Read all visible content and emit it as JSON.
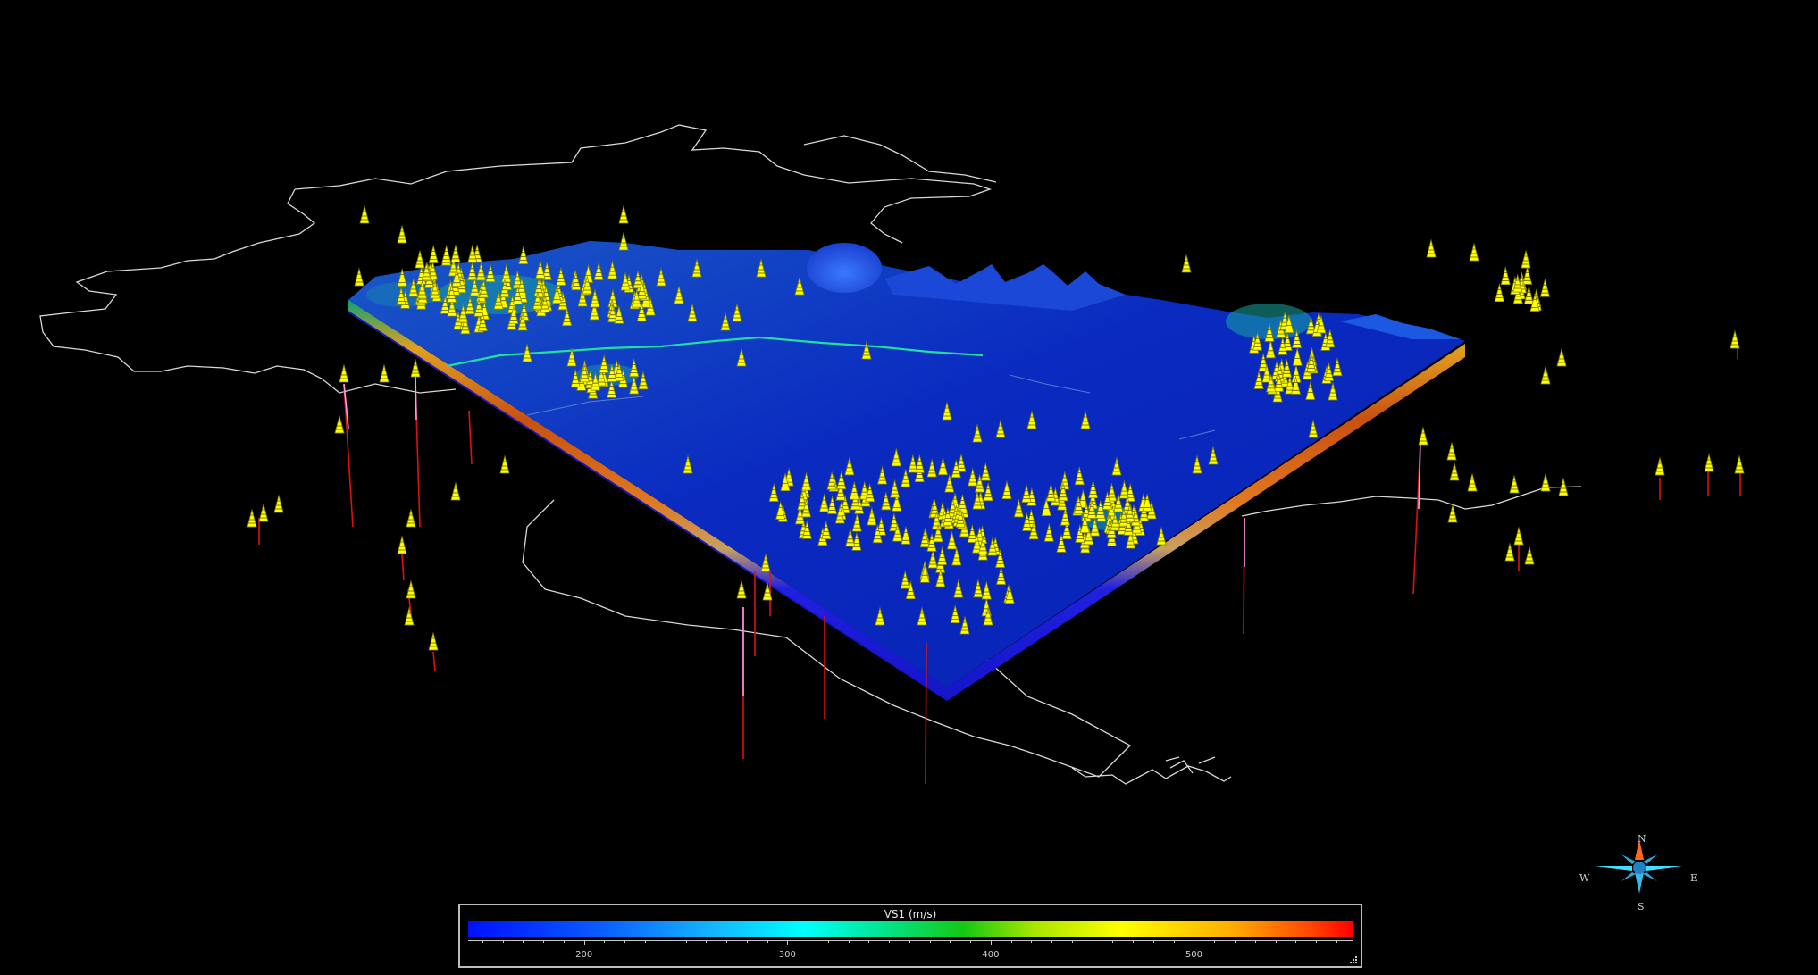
{
  "legend": {
    "title": "VS1 (m/s)",
    "ticks": [
      "200",
      "300",
      "400",
      "500"
    ],
    "range": [
      143,
      578
    ],
    "colors": [
      "#0010ff",
      "#00ffff",
      "#14c814",
      "#ffff00",
      "#ff0000"
    ]
  },
  "compass": {
    "north": "N",
    "south": "S",
    "east": "E",
    "west": "W"
  },
  "scene": {
    "background": "#000000",
    "well_symbol_color": "#ffff00",
    "well_trace_color": "#dd1111",
    "surface_color": "#0b2ec8",
    "boundary_line_color": "#d8d8d8"
  }
}
